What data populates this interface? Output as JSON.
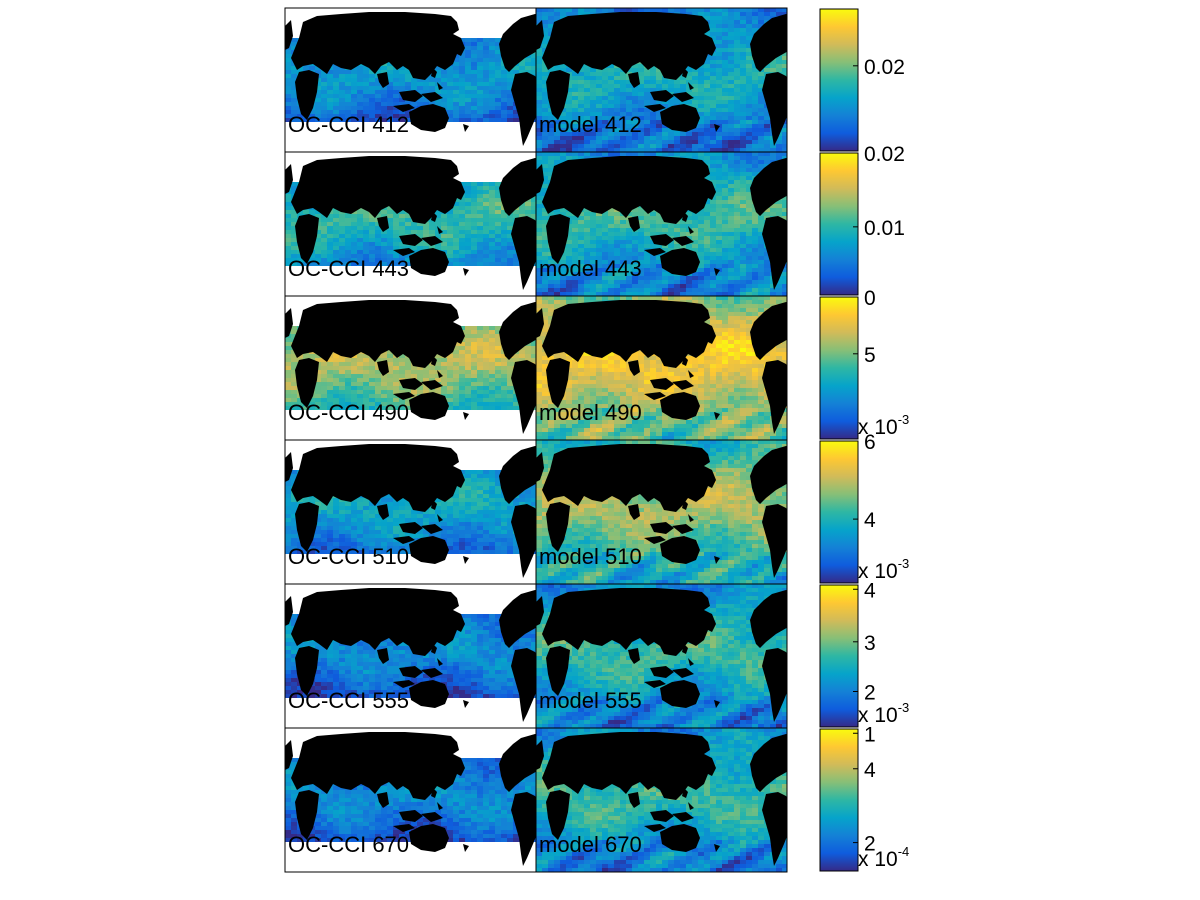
{
  "chart_data": {
    "type": "heatmap",
    "title": "",
    "colormap_stops": [
      "#352a87",
      "#0f5cdd",
      "#1481d6",
      "#06a4ca",
      "#2eb7a4",
      "#87bf77",
      "#d1bb59",
      "#fec832",
      "#f9fb0e"
    ],
    "land_color": "#000000",
    "nodata_color": "#ffffff",
    "rows": [
      {
        "panels": [
          {
            "label": "OC-CCI 412",
            "source": "OC-CCI",
            "wavelength": 412,
            "coverage": "tropical",
            "mean_level": 0.25
          },
          {
            "label": "model 412",
            "source": "model",
            "wavelength": 412,
            "coverage": "global",
            "mean_level": 0.38
          }
        ],
        "colorbar": {
          "ticks": [
            {
              "label": "0.02",
              "level": 0.6
            }
          ],
          "exponent": ""
        }
      },
      {
        "panels": [
          {
            "label": "OC-CCI 443",
            "source": "OC-CCI",
            "wavelength": 443,
            "coverage": "tropical",
            "mean_level": 0.4
          },
          {
            "label": "model 443",
            "source": "model",
            "wavelength": 443,
            "coverage": "global",
            "mean_level": 0.45
          }
        ],
        "colorbar": {
          "ticks": [
            {
              "label": "0.02",
              "level": 1.0
            },
            {
              "label": "0.01",
              "level": 0.48
            }
          ],
          "exponent": ""
        }
      },
      {
        "panels": [
          {
            "label": "OC-CCI 490",
            "source": "OC-CCI",
            "wavelength": 490,
            "coverage": "tropical",
            "mean_level": 0.6
          },
          {
            "label": "model 490",
            "source": "model",
            "wavelength": 490,
            "coverage": "global",
            "mean_level": 0.78
          }
        ],
        "colorbar": {
          "ticks": [
            {
              "label": "0",
              "level": 1.0
            },
            {
              "label": "5",
              "level": 0.6
            }
          ],
          "exponent": "x 10-3"
        }
      },
      {
        "panels": [
          {
            "label": "OC-CCI 510",
            "source": "OC-CCI",
            "wavelength": 510,
            "coverage": "tropical",
            "mean_level": 0.3
          },
          {
            "label": "model 510",
            "source": "model",
            "wavelength": 510,
            "coverage": "global",
            "mean_level": 0.62
          }
        ],
        "colorbar": {
          "ticks": [
            {
              "label": "6",
              "level": 1.0
            },
            {
              "label": "4",
              "level": 0.45
            }
          ],
          "exponent": "x 10-3"
        }
      },
      {
        "panels": [
          {
            "label": "OC-CCI 555",
            "source": "OC-CCI",
            "wavelength": 555,
            "coverage": "tropical",
            "mean_level": 0.2
          },
          {
            "label": "model 555",
            "source": "model",
            "wavelength": 555,
            "coverage": "global",
            "mean_level": 0.45
          }
        ],
        "colorbar": {
          "ticks": [
            {
              "label": "4",
              "level": 0.97
            },
            {
              "label": "3",
              "level": 0.6
            },
            {
              "label": "2",
              "level": 0.25
            }
          ],
          "exponent": "x 10-3"
        }
      },
      {
        "panels": [
          {
            "label": "OC-CCI 670",
            "source": "OC-CCI",
            "wavelength": 670,
            "coverage": "tropical",
            "mean_level": 0.2
          },
          {
            "label": "model 670",
            "source": "model",
            "wavelength": 670,
            "coverage": "global",
            "mean_level": 0.45
          }
        ],
        "colorbar": {
          "ticks": [
            {
              "label": "1",
              "level": 0.97
            },
            {
              "label": "4",
              "level": 0.72
            },
            {
              "label": "2",
              "level": 0.2
            }
          ],
          "exponent": "x 10-4"
        }
      }
    ]
  }
}
